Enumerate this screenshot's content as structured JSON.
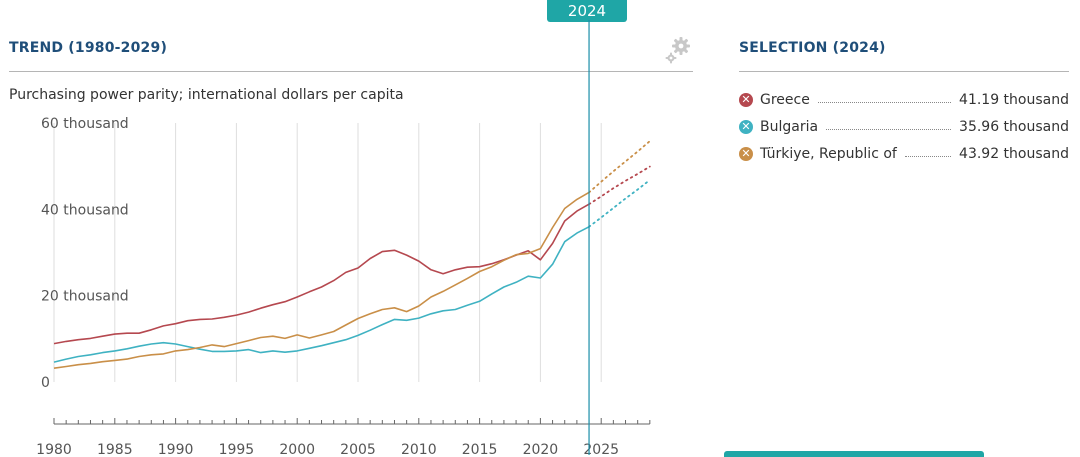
{
  "header": {
    "trend_title": "TREND (1980-2029)",
    "selection_title": "SELECTION (2024)",
    "selected_year": "2024",
    "subtitle": "Purchasing power parity; international dollars per capita"
  },
  "icons": {
    "settings": "gear-icon"
  },
  "colors": {
    "accent": "#1fa6a6",
    "title": "#1f4e79"
  },
  "chart_data": {
    "type": "line",
    "title": "",
    "xlabel": "",
    "ylabel": "Purchasing power parity; international dollars per capita",
    "xlim": [
      1980,
      2029
    ],
    "ylim": [
      0,
      60000
    ],
    "y_ticks": [
      {
        "value": 0,
        "label": "0"
      },
      {
        "value": 20000,
        "label": "20 thousand"
      },
      {
        "value": 40000,
        "label": "40 thousand"
      },
      {
        "value": 60000,
        "label": "60 thousand"
      }
    ],
    "x_tick_labels": [
      "1980",
      "1985",
      "1990",
      "1995",
      "2000",
      "2005",
      "2010",
      "2015",
      "2020",
      "2025"
    ],
    "grid": true,
    "selected_year": 2024,
    "projection_start": 2024,
    "x": [
      1980,
      1981,
      1982,
      1983,
      1984,
      1985,
      1986,
      1987,
      1988,
      1989,
      1990,
      1991,
      1992,
      1993,
      1994,
      1995,
      1996,
      1997,
      1998,
      1999,
      2000,
      2001,
      2002,
      2003,
      2004,
      2005,
      2006,
      2007,
      2008,
      2009,
      2010,
      2011,
      2012,
      2013,
      2014,
      2015,
      2016,
      2017,
      2018,
      2019,
      2020,
      2021,
      2022,
      2023,
      2024,
      2025,
      2026,
      2027,
      2028,
      2029
    ],
    "series": [
      {
        "name": "Greece",
        "color": "#b5484f",
        "values": [
          8900,
          9400,
          9800,
          10100,
          10600,
          11100,
          11300,
          11300,
          12100,
          13000,
          13500,
          14200,
          14500,
          14600,
          15000,
          15500,
          16200,
          17100,
          17900,
          18600,
          19700,
          20900,
          22000,
          23500,
          25400,
          26400,
          28600,
          30200,
          30500,
          29400,
          28000,
          26000,
          25100,
          26000,
          26600,
          26700,
          27400,
          28300,
          29400,
          30400,
          28300,
          32100,
          37300,
          39600,
          41190,
          43000,
          44900,
          46600,
          48200,
          49900
        ],
        "legend_value": "41.19 thousand"
      },
      {
        "name": "Bulgaria",
        "color": "#3fb2c2",
        "values": [
          4600,
          5300,
          5900,
          6300,
          6800,
          7200,
          7700,
          8300,
          8800,
          9100,
          8800,
          8200,
          7600,
          7100,
          7100,
          7200,
          7500,
          6800,
          7200,
          6900,
          7200,
          7800,
          8400,
          9100,
          9800,
          10800,
          12000,
          13300,
          14500,
          14300,
          14800,
          15800,
          16500,
          16800,
          17800,
          18700,
          20400,
          22000,
          23100,
          24500,
          24100,
          27300,
          32500,
          34500,
          35960,
          38100,
          40300,
          42500,
          44600,
          46800
        ],
        "legend_value": "35.96 thousand"
      },
      {
        "name": "Türkiye, Republic of",
        "color": "#c98f48",
        "values": [
          3200,
          3600,
          4000,
          4300,
          4700,
          5000,
          5300,
          5900,
          6300,
          6500,
          7200,
          7500,
          8000,
          8600,
          8200,
          8900,
          9600,
          10300,
          10600,
          10100,
          10900,
          10200,
          10900,
          11700,
          13200,
          14700,
          15800,
          16800,
          17200,
          16300,
          17600,
          19700,
          21000,
          22500,
          24000,
          25600,
          26700,
          28200,
          29500,
          29800,
          30900,
          35800,
          40200,
          42300,
          43920,
          46400,
          48800,
          51100,
          53400,
          55800
        ],
        "legend_value": "43.92 thousand"
      }
    ]
  }
}
